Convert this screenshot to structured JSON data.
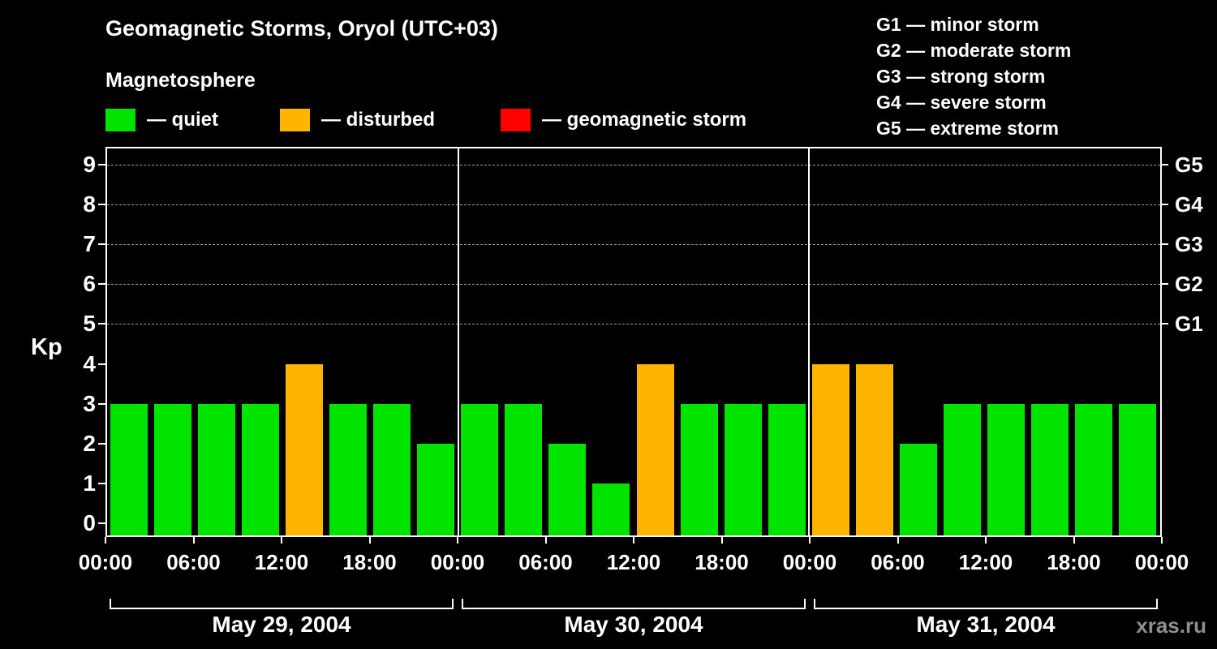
{
  "header": {
    "title": "Geomagnetic Storms, Oryol (UTC+03)",
    "subtitle": "Magnetosphere"
  },
  "legend": {
    "items": [
      {
        "name": "quiet",
        "label": "— quiet",
        "color": "#00e400"
      },
      {
        "name": "disturbed",
        "label": "— disturbed",
        "color": "#ffb400"
      },
      {
        "name": "storm",
        "label": "— geomagnetic storm",
        "color": "#ff0000"
      }
    ]
  },
  "g_legend": {
    "items": [
      "G1 — minor storm",
      "G2 — moderate storm",
      "G3 — strong storm",
      "G4 — severe storm",
      "G5 — extreme storm"
    ]
  },
  "watermark": "xras.ru",
  "chart_data": {
    "type": "bar",
    "title": "Geomagnetic Storms, Oryol (UTC+03)",
    "subtitle": "Magnetosphere",
    "ylabel": "Kp",
    "ylim": [
      0,
      9
    ],
    "y_ticks": [
      0,
      1,
      2,
      3,
      4,
      5,
      6,
      7,
      8,
      9
    ],
    "hours_per_bar": 3,
    "x_tick_hours": [
      "00:00",
      "06:00",
      "12:00",
      "18:00"
    ],
    "x_axis_end_label": "00:00",
    "g_levels": [
      {
        "label": "G5",
        "kp": 9
      },
      {
        "label": "G4",
        "kp": 8
      },
      {
        "label": "G3",
        "kp": 7
      },
      {
        "label": "G2",
        "kp": 6
      },
      {
        "label": "G1",
        "kp": 5
      }
    ],
    "colors": {
      "quiet": "#00e400",
      "disturbed": "#ffb400",
      "storm": "#ff0000"
    },
    "color_rule": {
      "quiet_max": 3,
      "disturbed_value": 4,
      "storm_min": 5
    },
    "days": [
      {
        "label": "May 29, 2004",
        "values": [
          3,
          3,
          3,
          3,
          4,
          3,
          3,
          2
        ]
      },
      {
        "label": "May 30, 2004",
        "values": [
          3,
          3,
          2,
          1,
          4,
          3,
          3,
          3
        ]
      },
      {
        "label": "May 31, 2004",
        "values": [
          4,
          4,
          2,
          3,
          3,
          3,
          3,
          3
        ]
      }
    ]
  }
}
